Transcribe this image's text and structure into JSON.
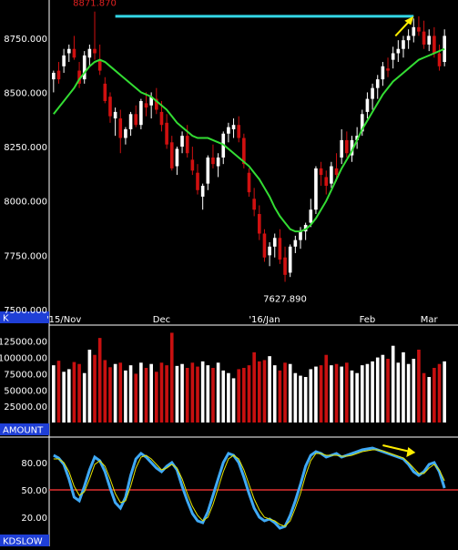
{
  "chart_data": [
    {
      "type": "candlestick",
      "panel": "price",
      "axis_tag": "K",
      "ylim": [
        7500,
        8900
      ],
      "y_ticks": [
        "8750.000",
        "8500.000",
        "8250.000",
        "8000.000",
        "7750.000",
        "7500.000"
      ],
      "y_tick_values": [
        8750,
        8500,
        8250,
        8000,
        7750,
        7500
      ],
      "x_labels": [
        {
          "label": "'15/Nov",
          "index": 2
        },
        {
          "label": "Dec",
          "index": 21
        },
        {
          "label": "'16/Jan",
          "index": 41
        },
        {
          "label": "Feb",
          "index": 61
        },
        {
          "label": "Mar",
          "index": 73
        }
      ],
      "candles": [
        [
          8560,
          8600,
          8500,
          8590
        ],
        [
          8600,
          8640,
          8540,
          8560
        ],
        [
          8620,
          8700,
          8590,
          8670
        ],
        [
          8680,
          8720,
          8640,
          8700
        ],
        [
          8700,
          8760,
          8650,
          8660
        ],
        [
          8600,
          8640,
          8520,
          8540
        ],
        [
          8560,
          8690,
          8540,
          8670
        ],
        [
          8660,
          8720,
          8620,
          8700
        ],
        [
          8700,
          8871.87,
          8650,
          8680
        ],
        [
          8650,
          8720,
          8580,
          8600
        ],
        [
          8540,
          8570,
          8450,
          8460
        ],
        [
          8480,
          8500,
          8360,
          8390
        ],
        [
          8380,
          8430,
          8300,
          8410
        ],
        [
          8380,
          8420,
          8220,
          8290
        ],
        [
          8290,
          8340,
          8260,
          8330
        ],
        [
          8330,
          8410,
          8300,
          8400
        ],
        [
          8400,
          8440,
          8340,
          8350
        ],
        [
          8350,
          8470,
          8330,
          8460
        ],
        [
          8450,
          8500,
          8390,
          8430
        ],
        [
          8440,
          8500,
          8380,
          8480
        ],
        [
          8470,
          8520,
          8400,
          8420
        ],
        [
          8410,
          8460,
          8320,
          8350
        ],
        [
          8360,
          8400,
          8240,
          8260
        ],
        [
          8270,
          8300,
          8140,
          8150
        ],
        [
          8160,
          8250,
          8120,
          8240
        ],
        [
          8250,
          8320,
          8220,
          8300
        ],
        [
          8300,
          8350,
          8200,
          8220
        ],
        [
          8190,
          8250,
          8120,
          8140
        ],
        [
          8130,
          8170,
          8030,
          8050
        ],
        [
          8020,
          8080,
          7960,
          8070
        ],
        [
          8080,
          8210,
          8050,
          8200
        ],
        [
          8200,
          8260,
          8150,
          8170
        ],
        [
          8160,
          8220,
          8110,
          8200
        ],
        [
          8200,
          8320,
          8170,
          8310
        ],
        [
          8310,
          8360,
          8270,
          8340
        ],
        [
          8330,
          8380,
          8290,
          8350
        ],
        [
          8350,
          8390,
          8270,
          8290
        ],
        [
          8290,
          8310,
          8150,
          8170
        ],
        [
          8130,
          8150,
          8020,
          8040
        ],
        [
          8010,
          8060,
          7930,
          7960
        ],
        [
          7940,
          7980,
          7820,
          7850
        ],
        [
          7850,
          7870,
          7720,
          7740
        ],
        [
          7750,
          7810,
          7700,
          7790
        ],
        [
          7790,
          7850,
          7740,
          7830
        ],
        [
          7830,
          7870,
          7710,
          7730
        ],
        [
          7740,
          7790,
          7627.89,
          7660
        ],
        [
          7670,
          7800,
          7650,
          7790
        ],
        [
          7790,
          7840,
          7760,
          7820
        ],
        [
          7820,
          7880,
          7780,
          7860
        ],
        [
          7860,
          7900,
          7820,
          7890
        ],
        [
          7900,
          8010,
          7880,
          7960
        ],
        [
          7960,
          8160,
          7940,
          8150
        ],
        [
          8150,
          8180,
          8070,
          8120
        ],
        [
          8110,
          8140,
          8030,
          8070
        ],
        [
          8080,
          8180,
          8060,
          8160
        ],
        [
          8150,
          8220,
          8090,
          8120
        ],
        [
          8200,
          8330,
          8170,
          8280
        ],
        [
          8280,
          8320,
          8200,
          8220
        ],
        [
          8210,
          8300,
          8180,
          8280
        ],
        [
          8280,
          8340,
          8240,
          8300
        ],
        [
          8320,
          8420,
          8300,
          8400
        ],
        [
          8410,
          8500,
          8380,
          8470
        ],
        [
          8470,
          8540,
          8420,
          8520
        ],
        [
          8520,
          8580,
          8470,
          8560
        ],
        [
          8560,
          8640,
          8530,
          8620
        ],
        [
          8610,
          8660,
          8570,
          8600
        ],
        [
          8650,
          8710,
          8610,
          8680
        ],
        [
          8680,
          8740,
          8640,
          8700
        ],
        [
          8700,
          8760,
          8660,
          8740
        ],
        [
          8740,
          8790,
          8700,
          8760
        ],
        [
          8760,
          8840,
          8730,
          8800
        ],
        [
          8800,
          8850,
          8760,
          8780
        ],
        [
          8780,
          8830,
          8700,
          8720
        ],
        [
          8720,
          8790,
          8690,
          8760
        ],
        [
          8760,
          8800,
          8660,
          8680
        ],
        [
          8680,
          8720,
          8600,
          8620
        ],
        [
          8640,
          8790,
          8620,
          8760
        ]
      ],
      "moving_average": [
        8400,
        8430,
        8460,
        8490,
        8520,
        8560,
        8590,
        8620,
        8640,
        8650,
        8640,
        8620,
        8600,
        8580,
        8560,
        8540,
        8520,
        8500,
        8490,
        8480,
        8460,
        8440,
        8420,
        8390,
        8360,
        8340,
        8320,
        8300,
        8290,
        8290,
        8290,
        8280,
        8270,
        8260,
        8240,
        8220,
        8200,
        8180,
        8160,
        8130,
        8100,
        8060,
        8020,
        7970,
        7930,
        7900,
        7870,
        7860,
        7860,
        7870,
        7890,
        7920,
        7960,
        8000,
        8050,
        8100,
        8150,
        8190,
        8230,
        8280,
        8330,
        8370,
        8410,
        8450,
        8490,
        8520,
        8550,
        8570,
        8590,
        8610,
        8630,
        8650,
        8660,
        8670,
        8680,
        8690,
        8700
      ],
      "annotations": [
        {
          "text": "8871.870",
          "value": 8871.87,
          "index": 8,
          "color": "#e02020"
        },
        {
          "text": "7627.890",
          "value": 7627.89,
          "index": 45,
          "color": "#ffffff"
        }
      ],
      "resistance_line": {
        "value": 8850,
        "from_index": 12,
        "to_index": 70,
        "color": "#33d6e6"
      },
      "colors": {
        "up": "#ffffff",
        "down": "#d01010",
        "ma": "#33dd33",
        "arrow": "#ffee00",
        "axis_tag_bg": "#1f3fd6"
      }
    },
    {
      "type": "bar",
      "panel": "volume",
      "axis_tag": "AMOUNT",
      "ylim": [
        0,
        140000
      ],
      "y_ticks": [
        "125000.00",
        "100000.00",
        "75000.00",
        "50000.00",
        "25000.00"
      ],
      "y_tick_values": [
        125000,
        100000,
        75000,
        50000,
        25000
      ],
      "values": [
        88000,
        95000,
        78000,
        82000,
        93000,
        90000,
        76000,
        112000,
        104000,
        130000,
        96000,
        85000,
        90000,
        92000,
        80000,
        88000,
        75000,
        92000,
        84000,
        90000,
        78000,
        92000,
        88000,
        138000,
        87000,
        90000,
        84000,
        92000,
        86000,
        94000,
        88000,
        84000,
        92000,
        80000,
        76000,
        68000,
        82000,
        84000,
        88000,
        108000,
        94000,
        96000,
        102000,
        88000,
        80000,
        92000,
        90000,
        76000,
        72000,
        70000,
        82000,
        86000,
        88000,
        104000,
        88000,
        90000,
        86000,
        92000,
        80000,
        76000,
        88000,
        90000,
        94000,
        100000,
        104000,
        98000,
        118000,
        92000,
        108000,
        90000,
        98000,
        112000,
        76000,
        70000,
        84000,
        90000,
        94000
      ],
      "colors": {
        "up": "#ffffff",
        "down": "#c81010",
        "axis_tag_bg": "#1f3fd6"
      }
    },
    {
      "type": "line",
      "panel": "stochastic",
      "axis_tag": "KDSLOW",
      "ylim": [
        0,
        100
      ],
      "y_ticks": [
        "80.00",
        "50.00",
        "20.00"
      ],
      "y_tick_values": [
        80,
        50,
        20
      ],
      "reference_line": {
        "value": 50,
        "color": "#e03030"
      },
      "series": [
        {
          "values": [
            88,
            85,
            78,
            62,
            42,
            38,
            54,
            72,
            86,
            82,
            70,
            52,
            36,
            30,
            42,
            66,
            84,
            90,
            86,
            80,
            74,
            70,
            76,
            80,
            72,
            54,
            38,
            24,
            16,
            14,
            26,
            44,
            62,
            80,
            90,
            88,
            80,
            64,
            46,
            30,
            20,
            16,
            18,
            14,
            8,
            10,
            22,
            38,
            56,
            76,
            88,
            92,
            90,
            86,
            88,
            90,
            86,
            88,
            90,
            92,
            94,
            95,
            96,
            94,
            92,
            90,
            88,
            86,
            84,
            78,
            70,
            66,
            70,
            78,
            80,
            70,
            52
          ],
          "color": "#3fa9f5"
        },
        {
          "values": [
            84,
            84,
            80,
            70,
            54,
            44,
            48,
            62,
            78,
            82,
            76,
            62,
            46,
            36,
            38,
            54,
            74,
            86,
            88,
            84,
            78,
            72,
            74,
            78,
            74,
            62,
            46,
            32,
            22,
            16,
            20,
            34,
            52,
            70,
            84,
            88,
            84,
            72,
            56,
            40,
            28,
            20,
            18,
            16,
            12,
            10,
            16,
            30,
            46,
            66,
            82,
            90,
            90,
            88,
            88,
            88,
            87,
            87,
            88,
            90,
            92,
            93,
            94,
            94,
            93,
            91,
            89,
            87,
            85,
            80,
            74,
            68,
            68,
            74,
            78,
            72,
            60
          ],
          "color": "#e8e800"
        }
      ],
      "arrow": {
        "color": "#ffee00",
        "from_index": 64,
        "to_index": 70
      }
    }
  ]
}
